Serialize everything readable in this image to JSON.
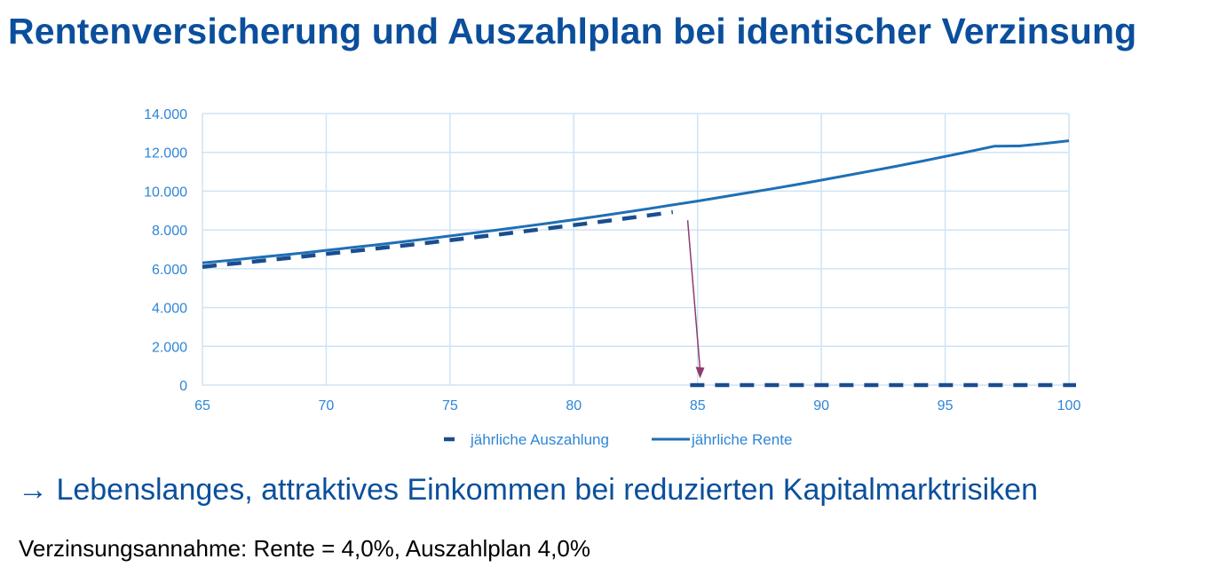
{
  "header": {
    "title": "Rentenversicherung und Auszahlplan bei identischer Verzinsung"
  },
  "conclusion": {
    "arrow": "→",
    "text": "Lebenslanges, attraktives Einkommen bei reduzierten Kapitalmarktrisiken"
  },
  "footnote": {
    "text": "Verzinsungsannahme: Rente = 4,0%, Auszahlplan 4,0%"
  },
  "colors": {
    "title": "#0b4f9c",
    "series": "#1f6fb5",
    "dashed": "#1a4d8f",
    "grid": "#cfe3f4",
    "arrow": "#8e3b6e",
    "tick": "#2e86d6"
  },
  "chart_data": {
    "type": "line",
    "xlim": [
      65,
      100
    ],
    "ylim": [
      0,
      14000
    ],
    "x_ticks": [
      "65",
      "70",
      "75",
      "80",
      "85",
      "90",
      "95",
      "100"
    ],
    "y_ticks": [
      "0",
      "2.000",
      "4.000",
      "6.000",
      "8.000",
      "10.000",
      "12.000",
      "14.000"
    ],
    "grid": true,
    "legend_position": "bottom",
    "series": [
      {
        "name": "jährliche Auszahlung",
        "style": "dashed",
        "x": [
          65,
          66,
          67,
          68,
          69,
          70,
          71,
          72,
          73,
          74,
          75,
          76,
          77,
          78,
          79,
          80,
          81,
          82,
          83,
          84,
          85,
          86,
          87,
          88,
          89,
          90,
          91,
          92,
          93,
          94,
          95,
          96,
          97,
          98,
          99,
          100
        ],
        "values": [
          6100,
          6230,
          6360,
          6490,
          6620,
          6760,
          6900,
          7040,
          7180,
          7320,
          7470,
          7620,
          7770,
          7930,
          8090,
          8250,
          8410,
          8580,
          8750,
          8920,
          0,
          0,
          0,
          0,
          0,
          0,
          0,
          0,
          0,
          0,
          0,
          0,
          0,
          0,
          0,
          0
        ]
      },
      {
        "name": "jährliche Rente",
        "style": "solid",
        "x": [
          65,
          66,
          67,
          68,
          69,
          70,
          71,
          72,
          73,
          74,
          75,
          76,
          77,
          78,
          79,
          80,
          81,
          82,
          83,
          84,
          85,
          86,
          87,
          88,
          89,
          90,
          91,
          92,
          93,
          94,
          95,
          96,
          97,
          98,
          99,
          100
        ],
        "values": [
          6300,
          6420,
          6550,
          6680,
          6810,
          6950,
          7090,
          7230,
          7380,
          7530,
          7690,
          7850,
          8010,
          8180,
          8350,
          8530,
          8710,
          8900,
          9090,
          9290,
          9490,
          9700,
          9910,
          10120,
          10340,
          10570,
          10800,
          11040,
          11280,
          11530,
          11790,
          12050,
          12320,
          12330,
          12460,
          12600
        ]
      }
    ],
    "annotations": [
      {
        "type": "arrow",
        "from": [
          84.6,
          8500
        ],
        "to": [
          85.1,
          350
        ]
      }
    ]
  }
}
